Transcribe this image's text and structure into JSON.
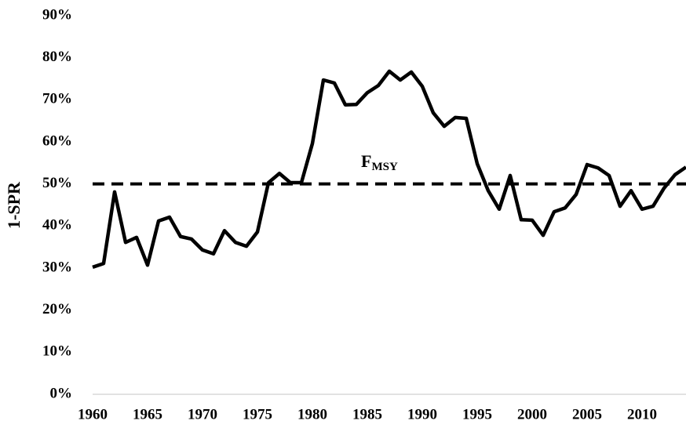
{
  "chart_data": {
    "type": "line",
    "ylabel": "1-SPR",
    "x": [
      1960,
      1961,
      1962,
      1963,
      1964,
      1965,
      1966,
      1967,
      1968,
      1969,
      1970,
      1971,
      1972,
      1973,
      1974,
      1975,
      1976,
      1977,
      1978,
      1979,
      1980,
      1981,
      1982,
      1983,
      1984,
      1985,
      1986,
      1987,
      1988,
      1989,
      1990,
      1991,
      1992,
      1993,
      1994,
      1995,
      1996,
      1997,
      1998,
      1999,
      2000,
      2001,
      2002,
      2003,
      2004,
      2005,
      2006,
      2007,
      2008,
      2009,
      2010,
      2011,
      2012,
      2013,
      2014
    ],
    "series": [
      {
        "color": "#000000",
        "values": [
          30.2,
          31.1,
          48.1,
          36.1,
          37.3,
          30.7,
          41.2,
          42.1,
          37.5,
          36.9,
          34.3,
          33.4,
          38.9,
          36.1,
          35.2,
          38.6,
          50.3,
          52.5,
          50.3,
          50.3,
          59.6,
          74.7,
          74.0,
          68.8,
          68.9,
          71.7,
          73.4,
          76.8,
          74.7,
          76.6,
          73.2,
          66.9,
          63.7,
          65.8,
          65.6,
          54.8,
          48.4,
          44.0,
          52.0,
          41.5,
          41.4,
          37.8,
          43.4,
          44.3,
          47.5,
          54.6,
          53.8,
          52.0,
          44.7,
          48.4,
          44.0,
          44.7,
          49.0,
          52.2,
          54.0
        ]
      }
    ],
    "reference_line": {
      "value": 50,
      "label": "F",
      "label_subscript": "MSY",
      "color": "#000000"
    },
    "xlim": [
      1960,
      2014
    ],
    "xticks": [
      1960,
      1965,
      1970,
      1975,
      1980,
      1985,
      1990,
      1995,
      2000,
      2005,
      2010
    ],
    "ylim": [
      0,
      90
    ],
    "yticks": [
      {
        "value": 0,
        "label": "0%"
      },
      {
        "value": 10,
        "label": "10%"
      },
      {
        "value": 20,
        "label": "20%"
      },
      {
        "value": 30,
        "label": "30%"
      },
      {
        "value": 40,
        "label": "40%"
      },
      {
        "value": 50,
        "label": "50%"
      },
      {
        "value": 60,
        "label": "60%"
      },
      {
        "value": 70,
        "label": "70%"
      },
      {
        "value": 80,
        "label": "80%"
      },
      {
        "value": 90,
        "label": "90%"
      }
    ],
    "grid": false
  }
}
